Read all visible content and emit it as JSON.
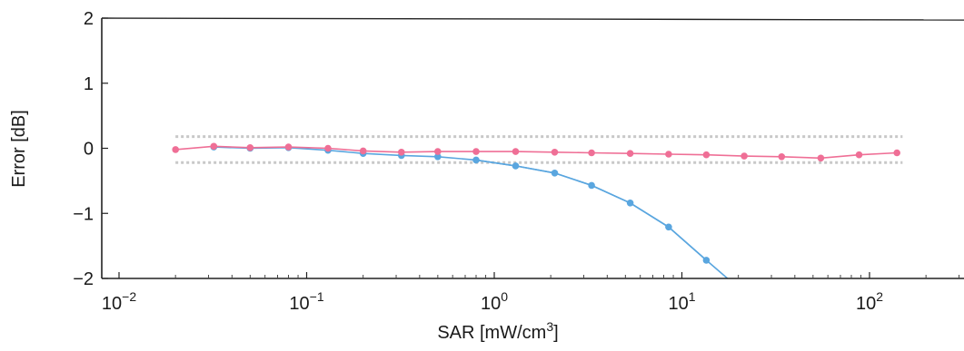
{
  "chart_data": {
    "type": "line",
    "xscale": "log",
    "xlim": [
      0.01,
      250
    ],
    "ylim": [
      -2,
      2
    ],
    "grid": false,
    "xlabel": "SAR [mW/cm3]",
    "xlabel_base": "SAR [mW/cm",
    "xlabel_sup": "3",
    "xlabel_close": "]",
    "ylabel": "Error [dB]",
    "x_ticks": [
      {
        "value": 0.01,
        "base": "10",
        "exp": "−2"
      },
      {
        "value": 0.1,
        "base": "10",
        "exp": "−1"
      },
      {
        "value": 1,
        "base": "10",
        "exp": "0"
      },
      {
        "value": 10,
        "base": "10",
        "exp": "1"
      },
      {
        "value": 100,
        "base": "10",
        "exp": "2"
      }
    ],
    "y_ticks": [
      {
        "value": 2,
        "label": "2"
      },
      {
        "value": 1,
        "label": "1"
      },
      {
        "value": 0,
        "label": "0"
      },
      {
        "value": -1,
        "label": "−1"
      },
      {
        "value": -2,
        "label": "−2"
      }
    ],
    "bands": [
      {
        "color": "#c8c8c8",
        "x": [
          0.02,
          150
        ],
        "y": [
          0.18,
          0.18
        ]
      },
      {
        "color": "#c8c8c8",
        "x": [
          0.02,
          150
        ],
        "y": [
          -0.22,
          -0.22
        ]
      }
    ],
    "series": [
      {
        "color": "#5aa6df",
        "x": [
          0.032,
          0.05,
          0.08,
          0.13,
          0.2,
          0.32,
          0.5,
          0.8,
          1.3,
          2.1,
          3.3,
          5.3,
          8.5,
          13.5
        ],
        "y": [
          0.02,
          0.0,
          0.01,
          -0.03,
          -0.08,
          -0.11,
          -0.13,
          -0.18,
          -0.27,
          -0.38,
          -0.57,
          -0.84,
          -1.21,
          -1.72
        ],
        "curve_x": [
          0.8,
          1.3,
          2.1,
          3.3,
          5.3,
          8.5,
          13.5,
          17.5
        ],
        "curve_y": [
          -0.18,
          -0.27,
          -0.38,
          -0.57,
          -0.84,
          -1.21,
          -1.72,
          -2.0
        ]
      },
      {
        "color": "#ef6f96",
        "x": [
          0.02,
          0.032,
          0.05,
          0.08,
          0.13,
          0.2,
          0.32,
          0.5,
          0.8,
          1.3,
          2.1,
          3.3,
          5.3,
          8.5,
          13.5,
          21.5,
          34,
          55,
          88,
          140
        ],
        "y": [
          -0.02,
          0.03,
          0.01,
          0.02,
          0.0,
          -0.04,
          -0.06,
          -0.05,
          -0.05,
          -0.05,
          -0.06,
          -0.07,
          -0.08,
          -0.09,
          -0.1,
          -0.12,
          -0.13,
          -0.15,
          -0.1,
          -0.07
        ]
      }
    ]
  }
}
